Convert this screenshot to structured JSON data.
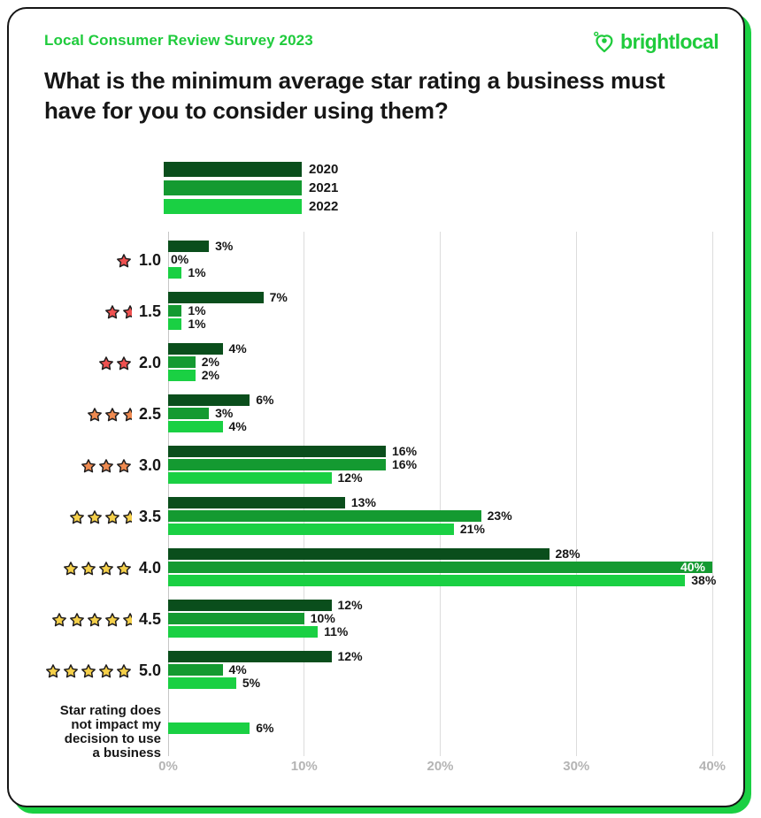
{
  "header": {
    "survey_label": "Local Consumer Review Survey 2023",
    "brand": "brightlocal",
    "title": "What is the minimum average star rating a business must have for you to consider using them?"
  },
  "colors": {
    "brand_green": "#1fcb3c",
    "series_2020": "#0a4e1c",
    "series_2021": "#149a31",
    "series_2022": "#1ad043",
    "star_red": "#ef5150",
    "star_orange": "#ef8a50",
    "star_yellow": "#f5d04a",
    "star_outline": "#201d1d",
    "axis_label": "#b4b4b4",
    "gridline_light": "#dcdcdc",
    "gridline_zero": "#c6c6c6",
    "card_border": "#151515",
    "text_dark": "#161616"
  },
  "chart_data": {
    "type": "bar",
    "orientation": "horizontal",
    "title": "What is the minimum average star rating a business must have for you to consider using them?",
    "xlim": [
      0,
      40
    ],
    "x_ticks": [
      "0%",
      "10%",
      "20%",
      "30%",
      "40%"
    ],
    "x_tick_values": [
      0,
      10,
      20,
      30,
      40
    ],
    "grid": "vertical",
    "legend_position": "top",
    "value_suffix": "%",
    "series": [
      {
        "name": "2020",
        "color_key": "series_2020"
      },
      {
        "name": "2021",
        "color_key": "series_2021"
      },
      {
        "name": "2022",
        "color_key": "series_2022"
      }
    ],
    "categories": [
      {
        "label": "1.0",
        "stars": 1,
        "star_color": "red",
        "values": [
          3,
          0,
          1
        ]
      },
      {
        "label": "1.5",
        "stars": 1.5,
        "star_color": "red",
        "values": [
          7,
          1,
          1
        ]
      },
      {
        "label": "2.0",
        "stars": 2,
        "star_color": "red",
        "values": [
          4,
          2,
          2
        ]
      },
      {
        "label": "2.5",
        "stars": 2.5,
        "star_color": "orange",
        "values": [
          6,
          3,
          4
        ]
      },
      {
        "label": "3.0",
        "stars": 3,
        "star_color": "orange",
        "values": [
          16,
          16,
          12
        ]
      },
      {
        "label": "3.5",
        "stars": 3.5,
        "star_color": "yellow",
        "values": [
          13,
          23,
          21
        ]
      },
      {
        "label": "4.0",
        "stars": 4,
        "star_color": "yellow",
        "values": [
          28,
          40,
          38
        ],
        "inside_labels": [
          false,
          true,
          false
        ]
      },
      {
        "label": "4.5",
        "stars": 4.5,
        "star_color": "yellow",
        "values": [
          12,
          10,
          11
        ]
      },
      {
        "label": "5.0",
        "stars": 5,
        "star_color": "yellow",
        "values": [
          12,
          4,
          5
        ]
      },
      {
        "label": "Star rating does not impact my decision to use a business",
        "label_lines": [
          "Star rating does",
          "not impact my",
          "decision to use",
          "a business"
        ],
        "stars": 0,
        "star_color": null,
        "values": [
          null,
          null,
          6
        ]
      }
    ]
  }
}
